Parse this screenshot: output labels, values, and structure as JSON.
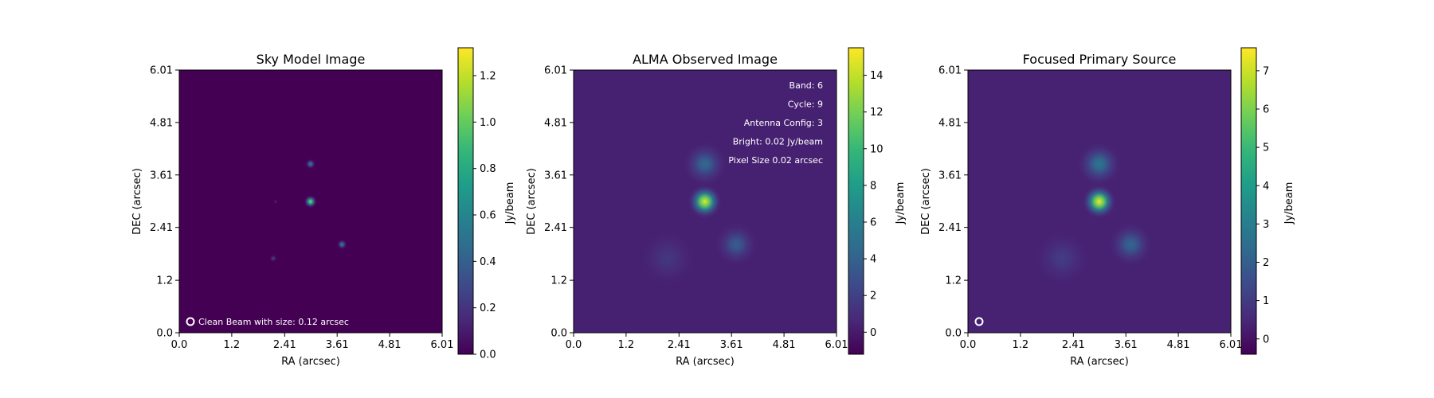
{
  "colormap": [
    "#440154",
    "#482878",
    "#3e4989",
    "#31688e",
    "#26828e",
    "#1f9e89",
    "#35b779",
    "#6ece58",
    "#b5de2b",
    "#fde725"
  ],
  "chart_data": [
    {
      "type": "heatmap",
      "title": "Sky Model Image",
      "xlabel": "RA (arcsec)",
      "ylabel": "DEC (arcsec)",
      "colorbar_label": "Jy/beam",
      "xlim": [
        0,
        6.01
      ],
      "ylim": [
        0,
        6.01
      ],
      "xticks": [
        "0.0",
        "1.2",
        "2.41",
        "3.61",
        "4.81",
        "6.01"
      ],
      "yticks": [
        "0.0",
        "1.2",
        "2.41",
        "3.61",
        "4.81",
        "6.01"
      ],
      "xtick_values": [
        0,
        1.2,
        2.41,
        3.61,
        4.81,
        6.01
      ],
      "ytick_values": [
        0,
        1.2,
        2.41,
        3.61,
        4.81,
        6.01
      ],
      "clim": [
        0,
        1.32
      ],
      "colorbar_ticks": [
        "0.0",
        "0.2",
        "0.4",
        "0.6",
        "0.8",
        "1.0",
        "1.2"
      ],
      "colorbar_tick_values": [
        0,
        0.2,
        0.4,
        0.6,
        0.8,
        1.0,
        1.2
      ],
      "background_value": 0,
      "sources": [
        {
          "x": 3.0,
          "y": 3.0,
          "peak": 1.1,
          "sigma": 0.05
        },
        {
          "x": 3.0,
          "y": 3.86,
          "peak": 0.55,
          "sigma": 0.04
        },
        {
          "x": 3.72,
          "y": 2.02,
          "peak": 0.55,
          "sigma": 0.04
        },
        {
          "x": 2.15,
          "y": 1.7,
          "peak": 0.25,
          "sigma": 0.03
        },
        {
          "x": 2.2,
          "y": 3.0,
          "peak": 0.15,
          "sigma": 0.02
        }
      ],
      "annotations": [],
      "beam_label": "Clean Beam with size: 0.12 arcsec"
    },
    {
      "type": "heatmap",
      "title": "ALMA Observed Image",
      "xlabel": "RA (arcsec)",
      "ylabel": "DEC (arcsec)",
      "colorbar_label": "Jy/beam",
      "xlim": [
        0,
        6.01
      ],
      "ylim": [
        0,
        6.01
      ],
      "xticks": [
        "0.0",
        "1.2",
        "2.41",
        "3.61",
        "4.81",
        "6.01"
      ],
      "yticks": [
        "0.0",
        "1.2",
        "2.41",
        "3.61",
        "4.81",
        "6.01"
      ],
      "xtick_values": [
        0,
        1.2,
        2.41,
        3.61,
        4.81,
        6.01
      ],
      "ytick_values": [
        0,
        1.2,
        2.41,
        3.61,
        4.81,
        6.01
      ],
      "clim": [
        -1.2,
        15.5
      ],
      "colorbar_ticks": [
        "0",
        "2",
        "4",
        "6",
        "8",
        "10",
        "12",
        "14"
      ],
      "colorbar_tick_values": [
        0,
        2,
        4,
        6,
        8,
        10,
        12,
        14
      ],
      "background_value": 0.3,
      "sources": [
        {
          "x": 3.0,
          "y": 3.0,
          "peak": 14.8,
          "sigma": 0.13
        },
        {
          "x": 3.0,
          "y": 3.86,
          "peak": 4.2,
          "sigma": 0.17
        },
        {
          "x": 3.72,
          "y": 2.02,
          "peak": 3.4,
          "sigma": 0.17
        },
        {
          "x": 2.15,
          "y": 1.7,
          "peak": 1.2,
          "sigma": 0.22
        }
      ],
      "annotations": [
        "Band: 6",
        "Cycle: 9",
        "Antenna Config: 3",
        "Bright: 0.02 Jy/beam",
        "Pixel Size 0.02 arcsec"
      ],
      "beam_label": ""
    },
    {
      "type": "heatmap",
      "title": "Focused Primary Source",
      "xlabel": "RA (arcsec)",
      "ylabel": "DEC (arcsec)",
      "colorbar_label": "Jy/beam",
      "xlim": [
        0,
        6.01
      ],
      "ylim": [
        0,
        6.01
      ],
      "xticks": [
        "0.0",
        "1.2",
        "2.41",
        "3.61",
        "4.81",
        "6.01"
      ],
      "yticks": [
        "0.0",
        "1.2",
        "2.41",
        "3.61",
        "4.81",
        "6.01"
      ],
      "xtick_values": [
        0,
        1.2,
        2.41,
        3.61,
        4.81,
        6.01
      ],
      "ytick_values": [
        0,
        1.2,
        2.41,
        3.61,
        4.81,
        6.01
      ],
      "clim": [
        -0.4,
        7.6
      ],
      "colorbar_ticks": [
        "0",
        "1",
        "2",
        "3",
        "4",
        "5",
        "6",
        "7"
      ],
      "colorbar_tick_values": [
        0,
        1,
        2,
        3,
        4,
        5,
        6,
        7
      ],
      "background_value": 0.35,
      "sources": [
        {
          "x": 3.0,
          "y": 3.0,
          "peak": 7.2,
          "sigma": 0.13
        },
        {
          "x": 3.0,
          "y": 3.86,
          "peak": 2.4,
          "sigma": 0.17
        },
        {
          "x": 3.72,
          "y": 2.02,
          "peak": 1.9,
          "sigma": 0.17
        },
        {
          "x": 2.15,
          "y": 1.7,
          "peak": 0.7,
          "sigma": 0.22
        }
      ],
      "annotations": [],
      "beam_label": ""
    }
  ]
}
